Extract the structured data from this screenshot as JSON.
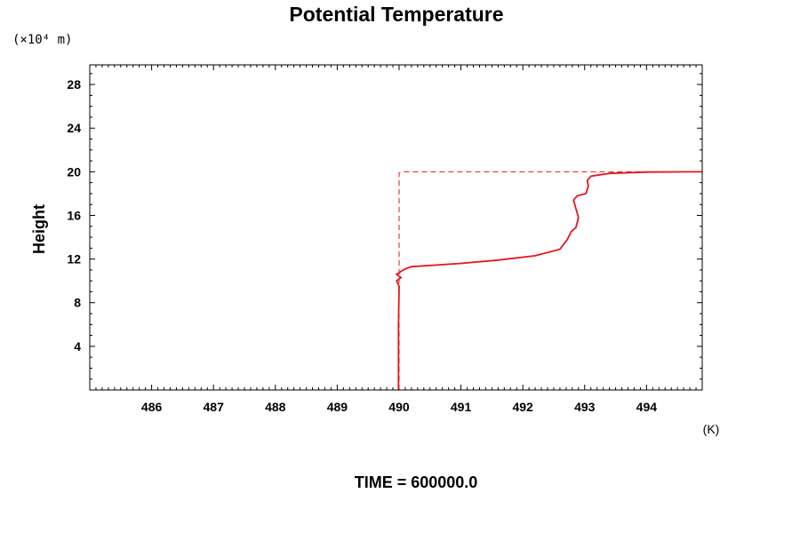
{
  "chart_data": {
    "type": "line",
    "title": "Potential Temperature",
    "ylabel": "Height",
    "yunit": "(×10⁴ m)",
    "xunit": "(K)",
    "time_label": "TIME = 600000.0",
    "xlim": [
      485.0,
      494.9
    ],
    "ylim": [
      0,
      29.8
    ],
    "xticks": [
      486,
      487,
      488,
      489,
      490,
      491,
      492,
      493,
      494
    ],
    "yticks": [
      4,
      8,
      12,
      16,
      20,
      24,
      28
    ],
    "grid": false,
    "series": [
      {
        "style": "solid",
        "color": "#e8141c",
        "points": [
          [
            489.99,
            0
          ],
          [
            489.99,
            6
          ],
          [
            490.0,
            9.5
          ],
          [
            489.96,
            10.0
          ],
          [
            490.03,
            10.3
          ],
          [
            489.96,
            10.6
          ],
          [
            490.04,
            10.9
          ],
          [
            490.1,
            11.1
          ],
          [
            490.2,
            11.3
          ],
          [
            490.6,
            11.45
          ],
          [
            491.0,
            11.6
          ],
          [
            491.6,
            11.9
          ],
          [
            492.2,
            12.3
          ],
          [
            492.6,
            12.9
          ],
          [
            492.72,
            13.8
          ],
          [
            492.78,
            14.5
          ],
          [
            492.86,
            14.9
          ],
          [
            492.9,
            15.8
          ],
          [
            492.86,
            16.6
          ],
          [
            492.82,
            17.4
          ],
          [
            492.88,
            17.8
          ],
          [
            493.02,
            18.0
          ],
          [
            493.06,
            18.7
          ],
          [
            493.04,
            19.2
          ],
          [
            493.1,
            19.6
          ],
          [
            493.4,
            19.85
          ],
          [
            494.0,
            19.97
          ],
          [
            494.9,
            20.0
          ]
        ]
      },
      {
        "style": "dashed",
        "color": "#e8141c",
        "points": [
          [
            490.0,
            0
          ],
          [
            490.0,
            19.9
          ],
          [
            490.05,
            20.0
          ],
          [
            494.9,
            20.0
          ]
        ]
      }
    ]
  }
}
